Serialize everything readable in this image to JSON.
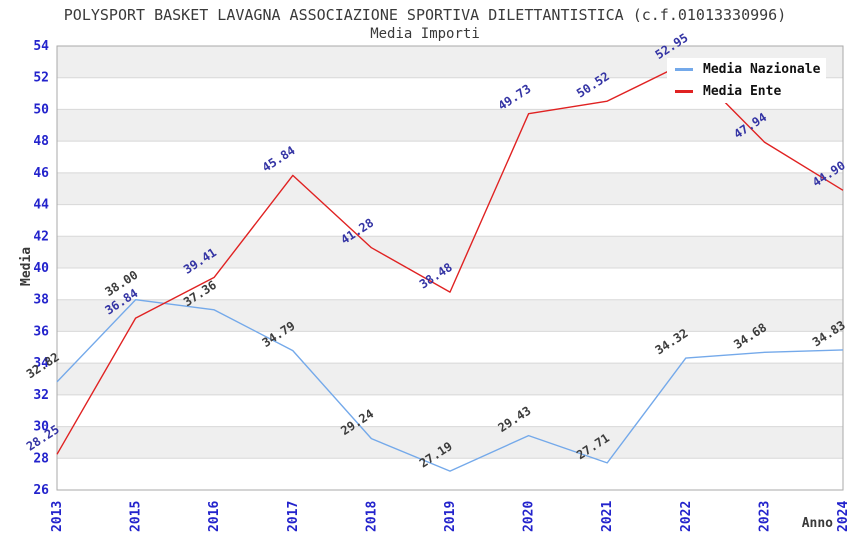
{
  "title": "POLYSPORT BASKET LAVAGNA ASSOCIAZIONE SPORTIVA DILETTANTISTICA (c.f.01013330996)",
  "subtitle": "Media Importi",
  "legend": {
    "items": [
      {
        "label": "Media Nazionale",
        "color": "#74a9ea"
      },
      {
        "label": "Media Ente",
        "color": "#e02222"
      }
    ]
  },
  "chart_data": {
    "type": "line",
    "categories": [
      "2013",
      "2015",
      "2016",
      "2017",
      "2018",
      "2019",
      "2020",
      "2021",
      "2022",
      "2023",
      "2024"
    ],
    "series": [
      {
        "name": "Media Nazionale",
        "color": "#74a9ea",
        "label_color": "#3c3c3c",
        "values": [
          32.82,
          38.0,
          37.36,
          34.79,
          29.24,
          27.19,
          29.43,
          27.71,
          34.32,
          34.68,
          34.83
        ]
      },
      {
        "name": "Media Ente",
        "color": "#e02222",
        "label_color": "#3434a4",
        "values": [
          28.25,
          36.84,
          39.41,
          45.84,
          41.28,
          38.48,
          49.73,
          50.52,
          52.95,
          47.94,
          44.9
        ]
      }
    ],
    "xlabel": "Anno",
    "ylabel": "Media",
    "ylim": [
      26,
      54
    ],
    "ytick_step": 2,
    "grid": true,
    "legend_position": "top-right",
    "colors": {
      "tick_label": "#2323cc",
      "axis_title": "#3a3a3a",
      "band": "#efefef",
      "gridline": "#d8d8d8",
      "plot_border": "#aaaaaa"
    }
  }
}
